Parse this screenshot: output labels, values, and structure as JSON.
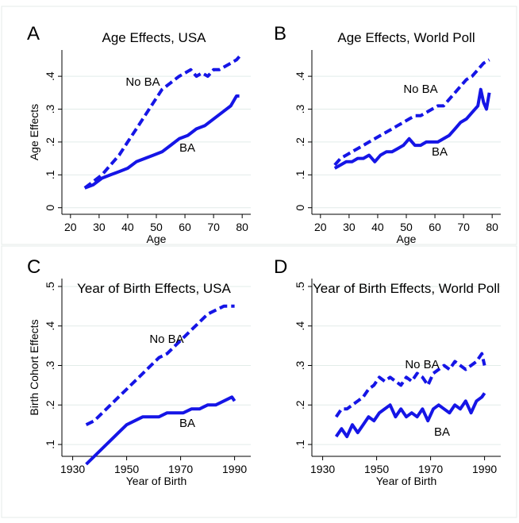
{
  "chart_data": [
    {
      "type": "line",
      "panel_letter": "A",
      "title": "Age Effects, USA",
      "xlabel": "Age",
      "ylabel": "Age Effects",
      "xlim": [
        17,
        83
      ],
      "ylim": [
        -0.02,
        0.48
      ],
      "xticks": [
        20,
        30,
        40,
        50,
        60,
        70,
        80
      ],
      "yticks": [
        0,
        0.1,
        0.2,
        0.3,
        0.4
      ],
      "ytick_labels": [
        "0",
        ".1",
        ".2",
        ".3",
        ".4"
      ],
      "grid": "horizontal",
      "series": [
        {
          "name": "No BA",
          "style": "dashed",
          "x": [
            25,
            28,
            31,
            34,
            37,
            40,
            43,
            46,
            49,
            52,
            55,
            58,
            60,
            62,
            64,
            66,
            68,
            70,
            72,
            74,
            76,
            78,
            79
          ],
          "y": [
            0.06,
            0.08,
            0.1,
            0.13,
            0.16,
            0.2,
            0.24,
            0.28,
            0.32,
            0.36,
            0.38,
            0.4,
            0.41,
            0.42,
            0.4,
            0.41,
            0.4,
            0.42,
            0.42,
            0.43,
            0.44,
            0.45,
            0.46
          ]
        },
        {
          "name": "BA",
          "style": "solid",
          "x": [
            25,
            28,
            31,
            34,
            37,
            40,
            43,
            46,
            49,
            52,
            55,
            58,
            61,
            64,
            67,
            70,
            73,
            76,
            78,
            79
          ],
          "y": [
            0.06,
            0.07,
            0.09,
            0.1,
            0.11,
            0.12,
            0.14,
            0.15,
            0.16,
            0.17,
            0.19,
            0.21,
            0.22,
            0.24,
            0.25,
            0.27,
            0.29,
            0.31,
            0.34,
            0.34
          ]
        }
      ]
    },
    {
      "type": "line",
      "panel_letter": "B",
      "title": "Age Effects, World Poll",
      "xlabel": "Age",
      "ylabel": "",
      "xlim": [
        17,
        83
      ],
      "ylim": [
        -0.02,
        0.48
      ],
      "xticks": [
        20,
        30,
        40,
        50,
        60,
        70,
        80
      ],
      "yticks": [
        0,
        0.1,
        0.2,
        0.3,
        0.4
      ],
      "ytick_labels": [
        "0",
        ".1",
        ".2",
        ".3",
        ".4"
      ],
      "grid": "horizontal",
      "series": [
        {
          "name": "No BA",
          "style": "dashed",
          "x": [
            25,
            27,
            29,
            31,
            33,
            35,
            37,
            39,
            41,
            43,
            45,
            47,
            49,
            51,
            53,
            55,
            57,
            59,
            61,
            63,
            65,
            67,
            69,
            71,
            73,
            75,
            77,
            79
          ],
          "y": [
            0.13,
            0.15,
            0.16,
            0.17,
            0.18,
            0.19,
            0.2,
            0.21,
            0.22,
            0.23,
            0.24,
            0.25,
            0.26,
            0.27,
            0.28,
            0.28,
            0.29,
            0.3,
            0.31,
            0.31,
            0.33,
            0.35,
            0.37,
            0.39,
            0.4,
            0.42,
            0.44,
            0.45
          ]
        },
        {
          "name": "BA",
          "style": "solid",
          "x": [
            25,
            27,
            29,
            31,
            33,
            35,
            37,
            39,
            41,
            43,
            45,
            47,
            49,
            51,
            53,
            55,
            57,
            59,
            61,
            63,
            65,
            67,
            69,
            71,
            73,
            75,
            76,
            77,
            78,
            79
          ],
          "y": [
            0.12,
            0.13,
            0.14,
            0.14,
            0.15,
            0.15,
            0.16,
            0.14,
            0.16,
            0.17,
            0.17,
            0.18,
            0.19,
            0.21,
            0.19,
            0.19,
            0.2,
            0.2,
            0.2,
            0.21,
            0.22,
            0.24,
            0.26,
            0.27,
            0.29,
            0.31,
            0.36,
            0.32,
            0.3,
            0.35
          ]
        }
      ]
    },
    {
      "type": "line",
      "panel_letter": "C",
      "title": "Year of Birth Effects, USA",
      "xlabel": "Year of Birth",
      "ylabel": "Birth Cohort Effects",
      "xlim": [
        1926,
        1996
      ],
      "ylim": [
        0.07,
        0.52
      ],
      "xticks": [
        1930,
        1950,
        1970,
        1990
      ],
      "yticks": [
        0.1,
        0.2,
        0.3,
        0.4,
        0.5
      ],
      "ytick_labels": [
        ".1",
        ".2",
        ".3",
        ".4",
        ".5"
      ],
      "grid": "horizontal",
      "series": [
        {
          "name": "No BA",
          "style": "dashed",
          "x": [
            1935,
            1938,
            1941,
            1944,
            1947,
            1950,
            1953,
            1956,
            1959,
            1962,
            1965,
            1968,
            1971,
            1974,
            1977,
            1980,
            1983,
            1986,
            1989,
            1990
          ],
          "y": [
            0.15,
            0.16,
            0.18,
            0.2,
            0.22,
            0.24,
            0.26,
            0.28,
            0.3,
            0.32,
            0.33,
            0.35,
            0.37,
            0.39,
            0.41,
            0.43,
            0.44,
            0.45,
            0.45,
            0.45
          ]
        },
        {
          "name": "BA",
          "style": "solid",
          "x": [
            1935,
            1938,
            1941,
            1944,
            1947,
            1950,
            1953,
            1956,
            1959,
            1962,
            1965,
            1968,
            1971,
            1974,
            1977,
            1980,
            1983,
            1986,
            1989,
            1990
          ],
          "y": [
            0.05,
            0.07,
            0.09,
            0.11,
            0.13,
            0.15,
            0.16,
            0.17,
            0.17,
            0.17,
            0.18,
            0.18,
            0.18,
            0.19,
            0.19,
            0.2,
            0.2,
            0.21,
            0.22,
            0.21
          ]
        }
      ]
    },
    {
      "type": "line",
      "panel_letter": "D",
      "title": "Year of Birth Effects, World Poll",
      "xlabel": "Year of Birth",
      "ylabel": "",
      "xlim": [
        1926,
        1996
      ],
      "ylim": [
        0.07,
        0.52
      ],
      "xticks": [
        1930,
        1950,
        1970,
        1990
      ],
      "yticks": [
        0.1,
        0.2,
        0.3,
        0.4,
        0.5
      ],
      "ytick_labels": [
        ".1",
        ".2",
        ".3",
        ".4",
        ".5"
      ],
      "grid": "horizontal",
      "series": [
        {
          "name": "No BA",
          "style": "dashed",
          "x": [
            1935,
            1937,
            1939,
            1941,
            1943,
            1945,
            1947,
            1949,
            1951,
            1953,
            1955,
            1957,
            1959,
            1961,
            1963,
            1965,
            1967,
            1969,
            1971,
            1973,
            1975,
            1977,
            1979,
            1981,
            1983,
            1985,
            1987,
            1989,
            1990
          ],
          "y": [
            0.17,
            0.19,
            0.19,
            0.2,
            0.21,
            0.22,
            0.24,
            0.25,
            0.27,
            0.26,
            0.27,
            0.26,
            0.25,
            0.27,
            0.26,
            0.28,
            0.27,
            0.25,
            0.28,
            0.29,
            0.3,
            0.29,
            0.31,
            0.3,
            0.29,
            0.3,
            0.31,
            0.33,
            0.3
          ]
        },
        {
          "name": "BA",
          "style": "solid",
          "x": [
            1935,
            1937,
            1939,
            1941,
            1943,
            1945,
            1947,
            1949,
            1951,
            1953,
            1955,
            1957,
            1959,
            1961,
            1963,
            1965,
            1967,
            1969,
            1971,
            1973,
            1975,
            1977,
            1979,
            1981,
            1983,
            1985,
            1987,
            1989,
            1990
          ],
          "y": [
            0.12,
            0.14,
            0.12,
            0.15,
            0.13,
            0.15,
            0.17,
            0.16,
            0.18,
            0.19,
            0.2,
            0.17,
            0.19,
            0.17,
            0.18,
            0.17,
            0.19,
            0.16,
            0.19,
            0.2,
            0.19,
            0.18,
            0.2,
            0.19,
            0.21,
            0.18,
            0.21,
            0.22,
            0.23
          ]
        }
      ]
    }
  ],
  "colors": {
    "series": "#1515e6",
    "grid": "#e2ece9",
    "axis": "#000000",
    "frame": "#e4ebe9"
  }
}
